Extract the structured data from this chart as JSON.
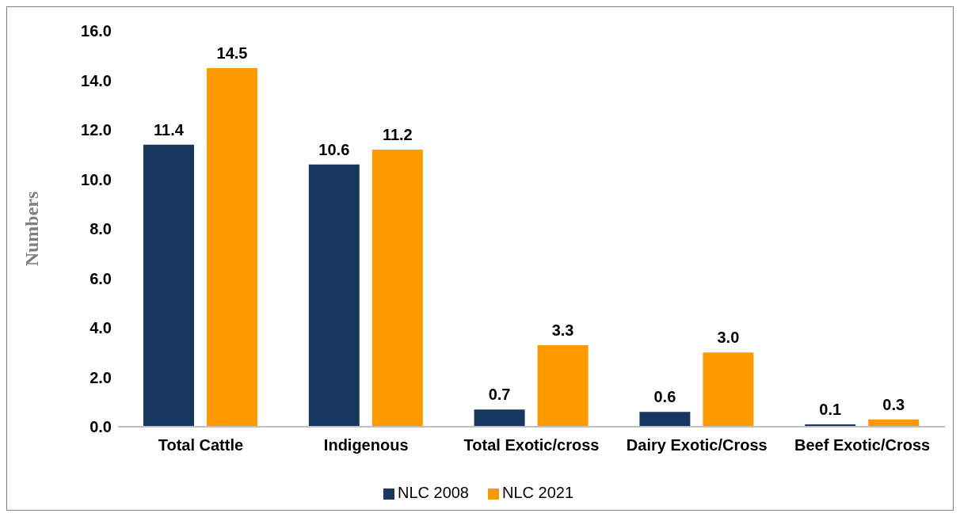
{
  "chart_data": {
    "type": "bar",
    "ylabel": "Numbers",
    "categories": [
      "Total Cattle",
      "Indigenous",
      "Total Exotic/cross",
      "Dairy Exotic/Cross",
      "Beef Exotic/Cross"
    ],
    "series": [
      {
        "name": "NLC 2008",
        "color": "#17375e",
        "values": [
          11.4,
          10.6,
          0.7,
          0.6,
          0.1
        ],
        "value_labels": [
          "11.4",
          "10.6",
          "0.7",
          "0.6",
          "0.1"
        ]
      },
      {
        "name": "NLC 2021",
        "color": "#ff9900",
        "values": [
          14.5,
          11.2,
          3.3,
          3.0,
          0.3
        ],
        "value_labels": [
          "14.5",
          "11.2",
          "3.3",
          "3.0",
          "0.3"
        ]
      }
    ],
    "ylim": [
      0,
      16
    ],
    "yticks": [
      {
        "value": 0,
        "label": "0.0"
      },
      {
        "value": 2,
        "label": "2.0"
      },
      {
        "value": 4,
        "label": "4.0"
      },
      {
        "value": 6,
        "label": "6.0"
      },
      {
        "value": 8,
        "label": "8.0"
      },
      {
        "value": 10,
        "label": "10.0"
      },
      {
        "value": 12,
        "label": "12.0"
      },
      {
        "value": 14,
        "label": "14.0"
      },
      {
        "value": 16,
        "label": "16.0"
      }
    ],
    "grid": false,
    "legend": "bottom"
  }
}
